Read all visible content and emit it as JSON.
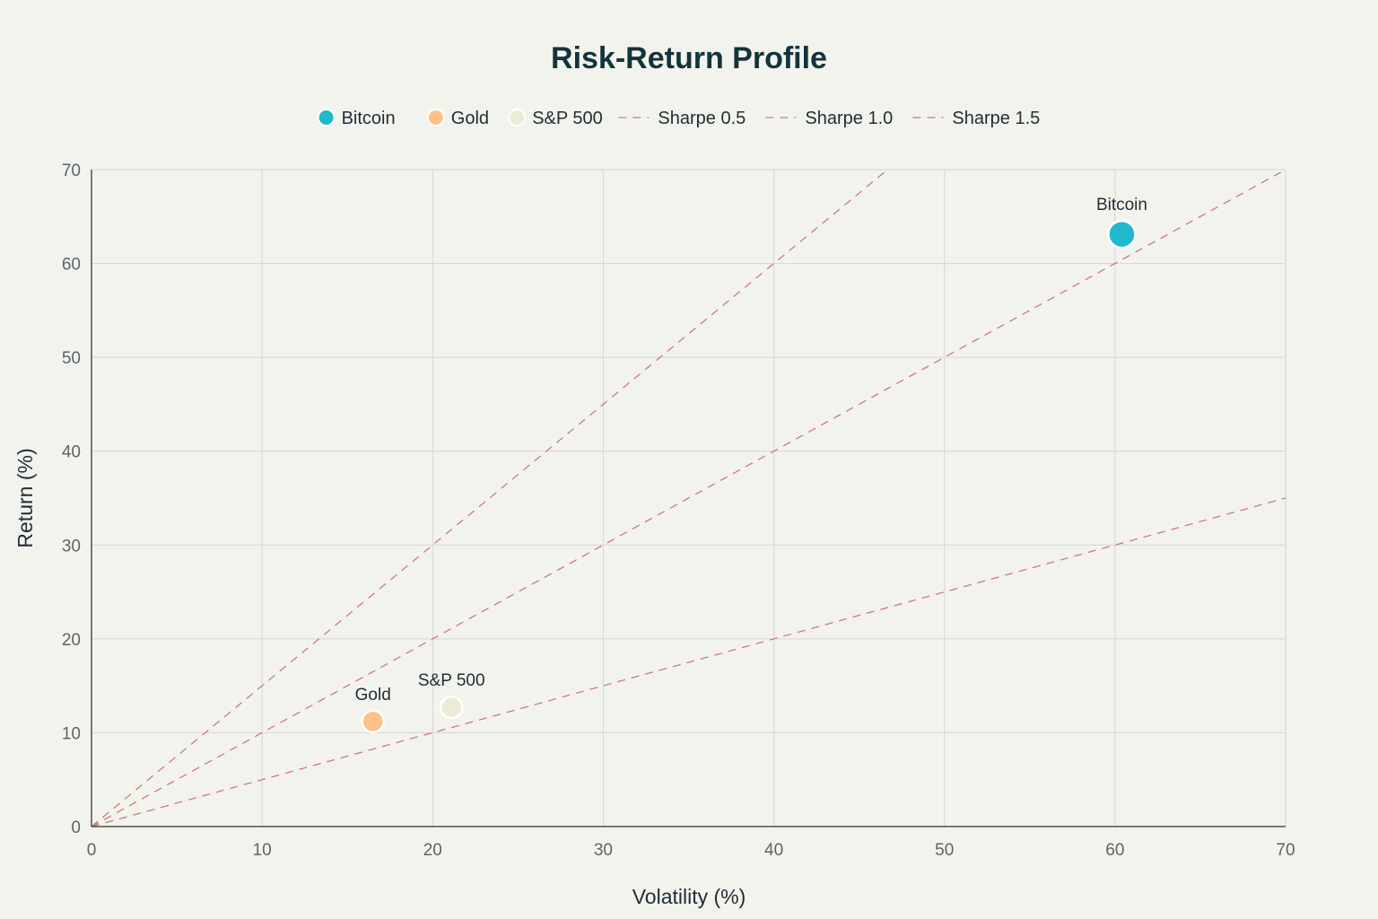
{
  "chart_data": {
    "type": "scatter",
    "title": "Risk-Return Profile",
    "xlabel": "Volatility (%)",
    "ylabel": "Return (%)",
    "xlim": [
      0,
      70
    ],
    "ylim": [
      0,
      70
    ],
    "xticks": [
      0,
      10,
      20,
      30,
      40,
      50,
      60,
      70
    ],
    "yticks": [
      0,
      10,
      20,
      30,
      40,
      50,
      60,
      70
    ],
    "grid": true,
    "legend_position": "top-center",
    "series": [
      {
        "name": "Bitcoin",
        "color": "#1fb8cd",
        "points": [
          {
            "x": 60.4,
            "y": 63.1,
            "label": "Bitcoin"
          }
        ]
      },
      {
        "name": "Gold",
        "color": "#ffc185",
        "points": [
          {
            "x": 16.5,
            "y": 11.2,
            "label": "Gold"
          }
        ]
      },
      {
        "name": "S&P 500",
        "color": "#ecebd5",
        "points": [
          {
            "x": 21.1,
            "y": 12.7,
            "label": "S&P 500"
          }
        ]
      }
    ],
    "reference_lines": [
      {
        "name": "Sharpe 0.5",
        "slope": 0.5,
        "x_end": 70,
        "color": "#c97b7b",
        "style": "dashed"
      },
      {
        "name": "Sharpe 1.0",
        "slope": 1.0,
        "x_end": 70,
        "color": "#c97b7b",
        "style": "dashed"
      },
      {
        "name": "Sharpe 1.5",
        "slope": 1.5,
        "x_end": 46.7,
        "color": "#c97b7b",
        "style": "dashed"
      }
    ]
  }
}
